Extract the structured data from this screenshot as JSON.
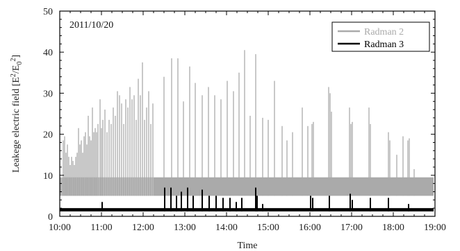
{
  "chart_data": {
    "type": "line",
    "annotation": "2011/10/20",
    "xlabel": "Time",
    "ylabel_main": "Leakege electric field [E",
    "ylabel_sup1": "2",
    "ylabel_mid": "/E",
    "ylabel_sub": "0",
    "ylabel_sup2": "2",
    "ylabel_end": "]",
    "xlim": [
      "10:00",
      "19:00"
    ],
    "ylim": [
      0,
      50
    ],
    "x_ticks": [
      "10:00",
      "11:00",
      "12:00",
      "13:00",
      "14:00",
      "15:00",
      "16:00",
      "17:00",
      "18:00",
      "19:00"
    ],
    "y_ticks": [
      "0",
      "10",
      "20",
      "30",
      "40",
      "50"
    ],
    "legend": {
      "position": "top-right"
    },
    "grid": false,
    "series": [
      {
        "name": "Radman 2",
        "color": "#aaaaaa",
        "baseline_band": [
          5,
          9.5
        ],
        "spikes": [
          {
            "t": "10:05",
            "v": 18.5
          },
          {
            "t": "10:07",
            "v": 19.5
          },
          {
            "t": "10:09",
            "v": 15.5
          },
          {
            "t": "10:11",
            "v": 17.5
          },
          {
            "t": "10:13",
            "v": 14.5
          },
          {
            "t": "10:15",
            "v": 12.5
          },
          {
            "t": "10:17",
            "v": 14.5
          },
          {
            "t": "10:19",
            "v": 13.5
          },
          {
            "t": "10:21",
            "v": 12.5
          },
          {
            "t": "10:23",
            "v": 14.5
          },
          {
            "t": "10:25",
            "v": 15.5
          },
          {
            "t": "10:27",
            "v": 21.5
          },
          {
            "t": "10:29",
            "v": 17.5
          },
          {
            "t": "10:31",
            "v": 18.5
          },
          {
            "t": "10:33",
            "v": 15.5
          },
          {
            "t": "10:35",
            "v": 19.5
          },
          {
            "t": "10:37",
            "v": 20.5
          },
          {
            "t": "10:39",
            "v": 17.5
          },
          {
            "t": "10:41",
            "v": 24.5
          },
          {
            "t": "10:43",
            "v": 19.5
          },
          {
            "t": "10:45",
            "v": 18.5
          },
          {
            "t": "10:47",
            "v": 26.5
          },
          {
            "t": "10:49",
            "v": 20.5
          },
          {
            "t": "10:51",
            "v": 21.5
          },
          {
            "t": "10:53",
            "v": 20.5
          },
          {
            "t": "10:55",
            "v": 22.5
          },
          {
            "t": "10:58",
            "v": 28.5
          },
          {
            "t": "11:00",
            "v": 21.5
          },
          {
            "t": "11:02",
            "v": 23.5
          },
          {
            "t": "11:05",
            "v": 26.0
          },
          {
            "t": "11:08",
            "v": 20.5
          },
          {
            "t": "11:11",
            "v": 23.5
          },
          {
            "t": "11:14",
            "v": 22.5
          },
          {
            "t": "11:17",
            "v": 26.5
          },
          {
            "t": "11:20",
            "v": 24.5
          },
          {
            "t": "11:23",
            "v": 30.5
          },
          {
            "t": "11:26",
            "v": 29.5
          },
          {
            "t": "11:29",
            "v": 27.5
          },
          {
            "t": "11:32",
            "v": 22.5
          },
          {
            "t": "11:35",
            "v": 28.5
          },
          {
            "t": "11:38",
            "v": 26.5
          },
          {
            "t": "11:41",
            "v": 31.5
          },
          {
            "t": "11:44",
            "v": 28.5
          },
          {
            "t": "11:47",
            "v": 29.5
          },
          {
            "t": "11:50",
            "v": 23.5
          },
          {
            "t": "11:53",
            "v": 33.5
          },
          {
            "t": "11:56",
            "v": 29.5
          },
          {
            "t": "11:59",
            "v": 37.5
          },
          {
            "t": "12:02",
            "v": 23.5
          },
          {
            "t": "12:05",
            "v": 26.5
          },
          {
            "t": "12:08",
            "v": 30.5
          },
          {
            "t": "12:11",
            "v": 22.5
          },
          {
            "t": "12:14",
            "v": 27.5
          },
          {
            "t": "12:30",
            "v": 34.0
          },
          {
            "t": "12:41",
            "v": 38.5
          },
          {
            "t": "12:50",
            "v": 38.5
          },
          {
            "t": "12:58",
            "v": 28.0
          },
          {
            "t": "13:07",
            "v": 36.5
          },
          {
            "t": "13:15",
            "v": 32.5
          },
          {
            "t": "13:25",
            "v": 29.5
          },
          {
            "t": "13:34",
            "v": 31.5
          },
          {
            "t": "13:43",
            "v": 29.5
          },
          {
            "t": "13:52",
            "v": 28.5
          },
          {
            "t": "14:01",
            "v": 33.0
          },
          {
            "t": "14:10",
            "v": 30.5
          },
          {
            "t": "14:18",
            "v": 35.0
          },
          {
            "t": "14:26",
            "v": 40.5
          },
          {
            "t": "14:34",
            "v": 24.5
          },
          {
            "t": "14:42",
            "v": 39.5
          },
          {
            "t": "14:52",
            "v": 24.0
          },
          {
            "t": "15:00",
            "v": 23.5
          },
          {
            "t": "15:09",
            "v": 33.0
          },
          {
            "t": "15:20",
            "v": 22.0
          },
          {
            "t": "15:27",
            "v": 18.5
          },
          {
            "t": "15:35",
            "v": 20.5
          },
          {
            "t": "15:49",
            "v": 26.5
          },
          {
            "t": "15:57",
            "v": 22.0
          },
          {
            "t": "16:03",
            "v": 22.5
          },
          {
            "t": "16:05",
            "v": 23.0
          },
          {
            "t": "16:27",
            "v": 31.5
          },
          {
            "t": "16:29",
            "v": 30.0
          },
          {
            "t": "16:31",
            "v": 25.5
          },
          {
            "t": "16:57",
            "v": 26.5
          },
          {
            "t": "16:59",
            "v": 22.5
          },
          {
            "t": "17:01",
            "v": 23.0
          },
          {
            "t": "17:25",
            "v": 26.5
          },
          {
            "t": "17:27",
            "v": 22.5
          },
          {
            "t": "17:53",
            "v": 20.5
          },
          {
            "t": "17:55",
            "v": 18.5
          },
          {
            "t": "18:05",
            "v": 15.0
          },
          {
            "t": "18:14",
            "v": 19.5
          },
          {
            "t": "18:21",
            "v": 18.5
          },
          {
            "t": "18:23",
            "v": 19.0
          },
          {
            "t": "18:30",
            "v": 11.5
          }
        ]
      },
      {
        "name": "Radman 3",
        "color": "#000000",
        "baseline_band": [
          1.2,
          2.0
        ],
        "spikes": [
          {
            "t": "11:01",
            "v": 3.5
          },
          {
            "t": "12:31",
            "v": 7.0
          },
          {
            "t": "12:40",
            "v": 7.0
          },
          {
            "t": "12:48",
            "v": 5.0
          },
          {
            "t": "12:55",
            "v": 6.0
          },
          {
            "t": "13:04",
            "v": 7.0
          },
          {
            "t": "13:12",
            "v": 5.0
          },
          {
            "t": "13:25",
            "v": 6.5
          },
          {
            "t": "13:35",
            "v": 5.0
          },
          {
            "t": "13:45",
            "v": 5.0
          },
          {
            "t": "13:55",
            "v": 4.5
          },
          {
            "t": "14:05",
            "v": 4.5
          },
          {
            "t": "14:14",
            "v": 3.5
          },
          {
            "t": "14:22",
            "v": 4.5
          },
          {
            "t": "14:42",
            "v": 7.0
          },
          {
            "t": "14:44",
            "v": 5.0
          },
          {
            "t": "14:52",
            "v": 3.0
          },
          {
            "t": "16:01",
            "v": 5.0
          },
          {
            "t": "16:04",
            "v": 4.5
          },
          {
            "t": "16:28",
            "v": 5.0
          },
          {
            "t": "16:58",
            "v": 5.5
          },
          {
            "t": "17:01",
            "v": 4.0
          },
          {
            "t": "17:27",
            "v": 4.5
          },
          {
            "t": "17:53",
            "v": 4.5
          },
          {
            "t": "18:22",
            "v": 3.0
          }
        ]
      }
    ]
  }
}
